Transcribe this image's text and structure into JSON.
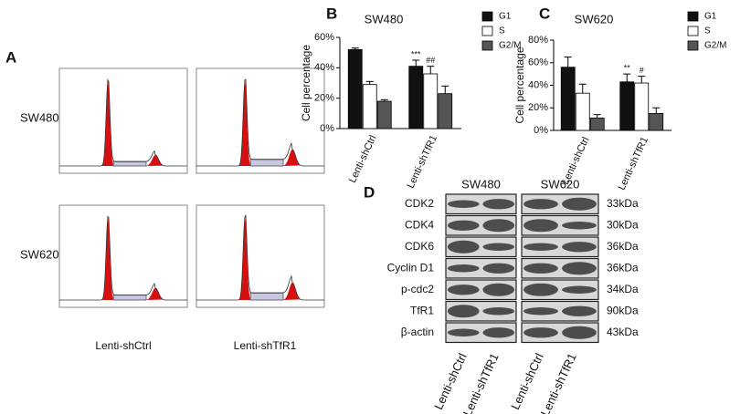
{
  "panel_a": {
    "label": "A",
    "rows": [
      "SW480",
      "SW620"
    ],
    "columns": [
      "Lenti-shCtrl",
      "Lenti-shTfR1"
    ]
  },
  "chart_data": [
    {
      "type": "bar",
      "panel": "B",
      "title": "SW480",
      "y_label": "Cell percentage",
      "categories": [
        "Lenti-shCtrl",
        "Lenti-shTfR1"
      ],
      "series": [
        {
          "name": "G1",
          "color": "#111111",
          "values": [
            52,
            41
          ],
          "errors": [
            1,
            4
          ],
          "annotations": [
            null,
            "***"
          ]
        },
        {
          "name": "S",
          "color": "#ffffff",
          "values": [
            29,
            36
          ],
          "errors": [
            2,
            5
          ],
          "annotations": [
            null,
            "##"
          ]
        },
        {
          "name": "G2/M",
          "color": "#555555",
          "values": [
            18,
            23
          ],
          "errors": [
            1,
            5
          ]
        }
      ],
      "ylim": [
        0,
        60
      ],
      "yticks": [
        {
          "value": 0,
          "label": "0%"
        },
        {
          "value": 20,
          "label": "20%"
        },
        {
          "value": 40,
          "label": "40%"
        },
        {
          "value": 60,
          "label": "60%"
        }
      ]
    },
    {
      "type": "bar",
      "panel": "C",
      "title": "SW620",
      "y_label": "Cell percentage",
      "categories": [
        "Lenti-shCtrl",
        "Lenti-shTfR1"
      ],
      "series": [
        {
          "name": "G1",
          "color": "#111111",
          "values": [
            56,
            43
          ],
          "errors": [
            9,
            7
          ],
          "annotations": [
            null,
            "**"
          ]
        },
        {
          "name": "S",
          "color": "#ffffff",
          "values": [
            33,
            42
          ],
          "errors": [
            8,
            6
          ],
          "annotations": [
            null,
            "#"
          ]
        },
        {
          "name": "G2/M",
          "color": "#555555",
          "values": [
            11,
            15
          ],
          "errors": [
            3,
            5
          ]
        }
      ],
      "ylim": [
        0,
        80
      ],
      "yticks": [
        {
          "value": 0,
          "label": "0%"
        },
        {
          "value": 20,
          "label": "20%"
        },
        {
          "value": 40,
          "label": "40%"
        },
        {
          "value": 60,
          "label": "60%"
        },
        {
          "value": 80,
          "label": "80%"
        }
      ]
    }
  ],
  "panel_d": {
    "label": "D",
    "groups": [
      "SW480",
      "SW620"
    ],
    "proteins": [
      "CDK2",
      "CDK4",
      "CDK6",
      "Cyclin D1",
      "p-cdc2",
      "TfR1",
      "β-actin"
    ],
    "sizes": [
      "33kDa",
      "30kDa",
      "36kDa",
      "36kDa",
      "34kDa",
      "90kDa",
      "43kDa"
    ],
    "lanes": [
      "Lenti-shCtrl",
      "Lenti-shTfR1",
      "Lenti-shCtrl",
      "Lenti-shTfR1"
    ]
  }
}
